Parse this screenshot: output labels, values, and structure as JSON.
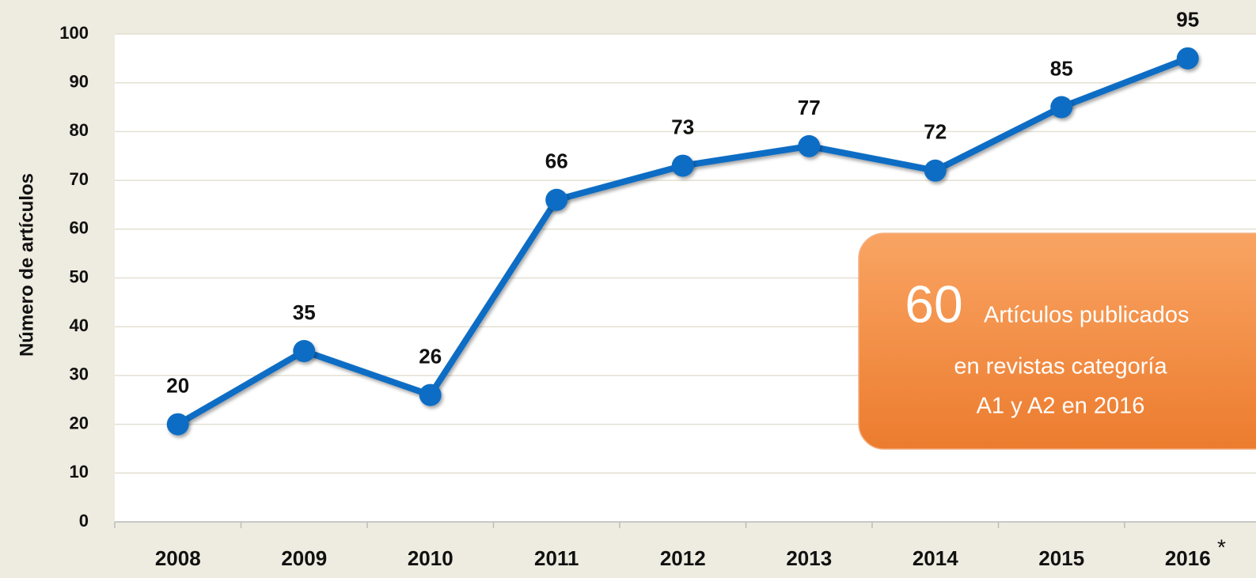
{
  "chart_data": {
    "type": "line",
    "y_label": "Número de artículos",
    "categories": [
      "2008",
      "2009",
      "2010",
      "2011",
      "2012",
      "2013",
      "2014",
      "2015",
      "2016"
    ],
    "series": [
      {
        "name": "Artículos",
        "color": "#0f6dc4",
        "values": [
          20,
          35,
          26,
          66,
          73,
          77,
          72,
          85,
          95
        ]
      }
    ],
    "ylim": [
      0,
      100
    ],
    "yticks": [
      0,
      10,
      20,
      30,
      40,
      50,
      60,
      70,
      80,
      90,
      100
    ],
    "grid": true,
    "footnote_mark": "*",
    "callout": {
      "number": 60,
      "lines": [
        "Artículos publicados",
        "en revistas categoría",
        "A1 y A2 en 2016"
      ]
    }
  }
}
